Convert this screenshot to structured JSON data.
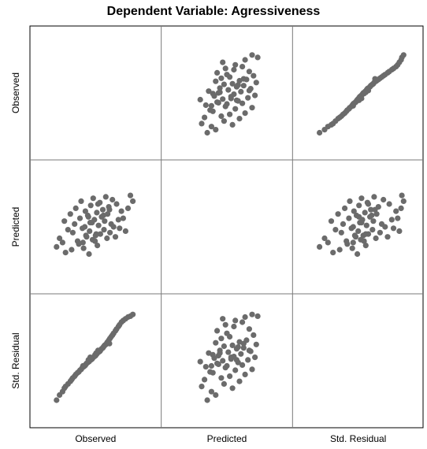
{
  "title": "Dependent Variable: Agressiveness",
  "chart_data": {
    "type": "scatter",
    "title": "Dependent Variable: Agressiveness",
    "variables": [
      "Observed",
      "Predicted",
      "Std. Residual"
    ],
    "grid": false,
    "colors": {
      "point": "#6b6b6b",
      "frame": "#000000",
      "cell_border": "#7a7a7a"
    },
    "ranges": {
      "Observed": [
        0,
        14
      ],
      "Predicted": [
        4,
        10
      ],
      "Std. Residual": [
        -2.5,
        2.5
      ]
    },
    "pairs": {
      "Observed": [
        0.5,
        1.0,
        1.5,
        1.8,
        2.0,
        2.4,
        2.8,
        3.0,
        3.2,
        3.5,
        3.7,
        4.0,
        4.2,
        4.4,
        4.6,
        4.8,
        5.0,
        5.2,
        5.3,
        5.5,
        5.7,
        5.9,
        6.0,
        6.2,
        6.4,
        6.5,
        6.6,
        6.8,
        7.0,
        7.2,
        7.3,
        7.5,
        7.7,
        7.8,
        8.0,
        8.2,
        8.4,
        8.5,
        8.7,
        8.9,
        9.0,
        9.2,
        9.4,
        9.6,
        9.8,
        10.0,
        10.3,
        10.5,
        10.8,
        11.0,
        11.3,
        11.6,
        12.0,
        12.4,
        12.8,
        13.2,
        6.1,
        5.4,
        7.4,
        6.9,
        8.3,
        4.9,
        9.3,
        7.1,
        5.8
      ],
      "Predicted": [
        5.6,
        6.2,
        5.9,
        7.4,
        5.2,
        6.8,
        7.9,
        5.4,
        6.6,
        7.2,
        8.3,
        6.0,
        5.8,
        7.6,
        8.8,
        6.9,
        5.5,
        7.0,
        8.1,
        6.3,
        7.8,
        5.1,
        6.7,
        8.5,
        7.3,
        6.1,
        9.0,
        7.5,
        6.4,
        8.0,
        5.7,
        7.1,
        8.7,
        6.5,
        7.7,
        8.2,
        6.8,
        7.4,
        9.1,
        6.2,
        7.9,
        8.4,
        6.6,
        7.2,
        8.9,
        7.0,
        6.3,
        8.6,
        7.5,
        6.9,
        8.1,
        7.6,
        6.7,
        8.3,
        9.2,
        8.8,
        7.3,
        6.4,
        8.6,
        6.0,
        7.8,
        5.9,
        8.2,
        6.5,
        7.7
      ],
      "Std. Residual": [
        -2.3,
        -2.0,
        -1.8,
        -1.6,
        -1.5,
        -1.35,
        -1.2,
        -1.1,
        -1.0,
        -0.9,
        -0.8,
        -0.7,
        -0.65,
        -0.55,
        -0.5,
        -0.4,
        -0.35,
        -0.3,
        -0.25,
        -0.15,
        -0.1,
        -0.05,
        0.0,
        0.05,
        0.1,
        0.15,
        0.2,
        0.25,
        0.3,
        0.4,
        0.45,
        0.5,
        0.55,
        0.6,
        0.7,
        0.75,
        0.85,
        0.9,
        0.95,
        1.05,
        1.1,
        1.2,
        1.3,
        1.4,
        1.5,
        1.6,
        1.75,
        1.85,
        2.0,
        2.1,
        2.25,
        2.35,
        2.45,
        2.55,
        2.6,
        2.7,
        0.2,
        -0.2,
        0.6,
        0.35,
        0.8,
        -0.3,
        1.0,
        0.45,
        0.05
      ]
    }
  }
}
